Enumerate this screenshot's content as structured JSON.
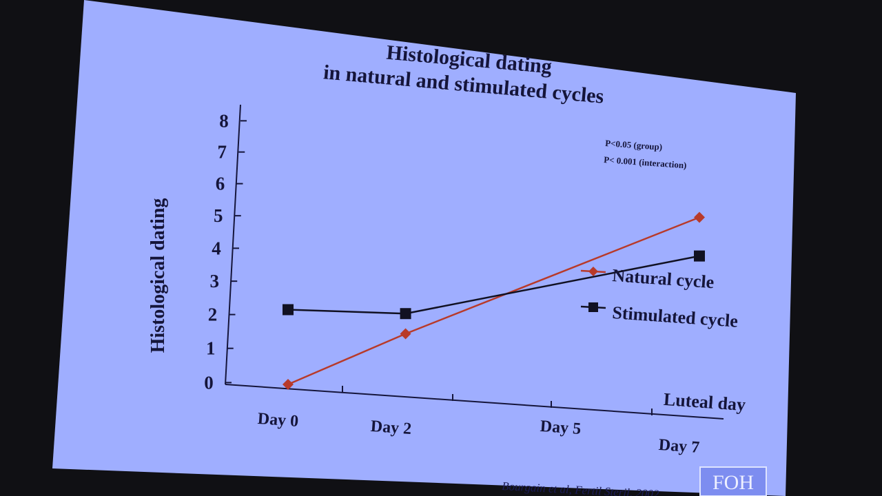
{
  "slide": {
    "title_line1": "Histological dating",
    "title_line2": "in natural and stimulated cycles",
    "citation": "Bourgain et al, Fertil Steril, 2002",
    "logo_text": "FOH",
    "pvalue_line1": "P<0.05 (group)",
    "pvalue_line2": "P< 0.001 (interaction)"
  },
  "colors": {
    "slide_background": "#9faeff",
    "natural_cycle": "#b83a2a",
    "stimulated_cycle": "#111122"
  },
  "chart_data": {
    "type": "line",
    "title": "Histological dating in natural and stimulated cycles",
    "xlabel": "Luteal day",
    "ylabel": "Histological dating",
    "categories": [
      "Day 0",
      "Day 2",
      "Day 5",
      "Day 7"
    ],
    "x": [
      0,
      2,
      7
    ],
    "ylim": [
      0,
      8
    ],
    "yticks": [
      "0",
      "1",
      "2",
      "3",
      "4",
      "5",
      "6",
      "7",
      "8"
    ],
    "series": [
      {
        "name": "Natural cycle",
        "marker": "diamond",
        "x": [
          0,
          2,
          7
        ],
        "values": [
          0,
          1.7,
          5.8
        ]
      },
      {
        "name": "Stimulated cycle",
        "marker": "square",
        "x": [
          0,
          2,
          7
        ],
        "values": [
          2.2,
          2.3,
          4.6
        ]
      }
    ],
    "legend": "right",
    "annotations": [
      "P<0.05 (group)",
      "P< 0.001 (interaction)"
    ]
  }
}
